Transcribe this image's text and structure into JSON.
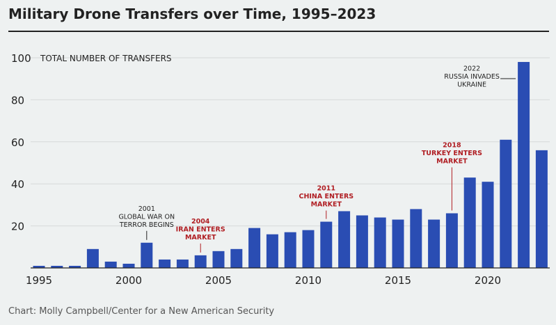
{
  "title": "Military Drone Transfers over Time, 1995–2023",
  "credit": "Chart: Molly Campbell/Center for a New American Security",
  "colors": {
    "bar": "#2a4db3",
    "annotation_red": "#b01e23",
    "annotation_black": "#222222",
    "grid": "#d6d9d9"
  },
  "chart_data": {
    "type": "bar",
    "title": "Military Drone Transfers over Time, 1995–2023",
    "ylabel": "TOTAL NUMBER OF TRANSFERS",
    "xlabel": "",
    "ylim": [
      0,
      100
    ],
    "yticks": [
      20,
      40,
      60,
      80,
      100
    ],
    "xticks": [
      1995,
      2000,
      2005,
      2010,
      2015,
      2020
    ],
    "categories": [
      1995,
      1996,
      1997,
      1998,
      1999,
      2000,
      2001,
      2002,
      2003,
      2004,
      2005,
      2006,
      2007,
      2008,
      2009,
      2010,
      2011,
      2012,
      2013,
      2014,
      2015,
      2016,
      2017,
      2018,
      2019,
      2020,
      2021,
      2022,
      2023
    ],
    "values": [
      1,
      1,
      1,
      9,
      3,
      2,
      12,
      4,
      4,
      6,
      8,
      9,
      19,
      16,
      17,
      18,
      22,
      27,
      25,
      24,
      23,
      28,
      23,
      26,
      43,
      41,
      61,
      98,
      56
    ],
    "annotations": [
      {
        "year": 2001,
        "lines": [
          "2001",
          "GLOBAL WAR ON",
          "TERROR BEGINS"
        ],
        "color": "black",
        "anchor": "above"
      },
      {
        "year": 2004,
        "lines": [
          "2004",
          "IRAN ENTERS",
          "MARKET"
        ],
        "color": "red",
        "anchor": "above"
      },
      {
        "year": 2011,
        "lines": [
          "2011",
          "CHINA ENTERS",
          "MARKET"
        ],
        "color": "red",
        "anchor": "above"
      },
      {
        "year": 2018,
        "lines": [
          "2018",
          "TURKEY ENTERS",
          "MARKET"
        ],
        "color": "red",
        "anchor": "above"
      },
      {
        "year": 2022,
        "lines": [
          "2022",
          "RUSSIA INVADES",
          "UKRAINE"
        ],
        "color": "black",
        "anchor": "left"
      }
    ]
  }
}
